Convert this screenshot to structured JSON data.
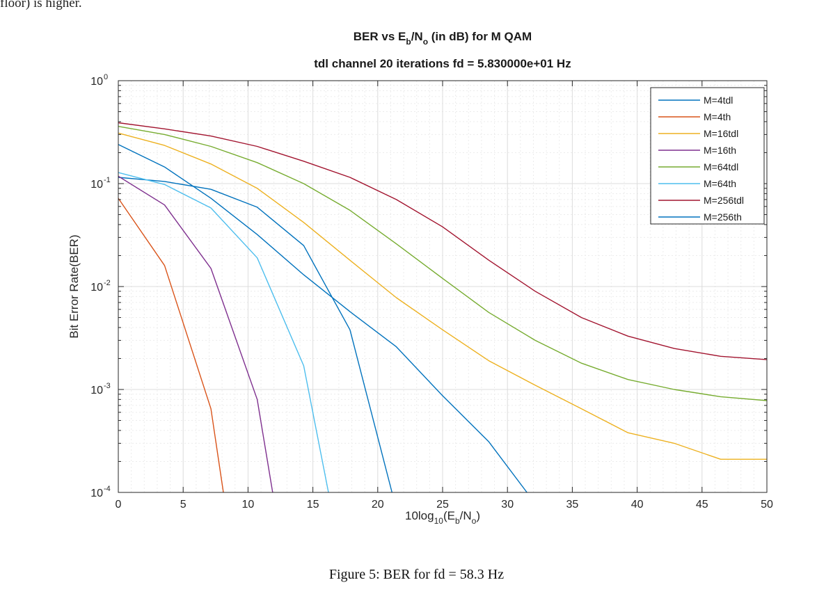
{
  "page": {
    "clipped_text": "floor) is higher.",
    "caption": "Figure 5: BER for fd = 58.3 Hz"
  },
  "chart_data": {
    "type": "line",
    "title": {
      "prefix": "BER vs E",
      "sub1": "b",
      "mid": "/N",
      "sub2": "o",
      "suffix": " (in dB) for M QAM"
    },
    "subtitle": "tdl channel 20 iterations fd = 5.830000e+01 Hz",
    "xlabel": {
      "prefix": "10log",
      "sub1": "10",
      "mid": "(E",
      "sub2": "b",
      "mid2": "/N",
      "sub3": "o",
      "suffix": ")"
    },
    "ylabel": "Bit Error Rate(BER)",
    "xlim": [
      0,
      50
    ],
    "ylim": [
      0.0001,
      1
    ],
    "yscale": "log",
    "xticks": [
      0,
      5,
      10,
      15,
      20,
      25,
      30,
      35,
      40,
      45,
      50
    ],
    "yticks": [
      {
        "value": 0.0001,
        "base": "10",
        "exp": "-4"
      },
      {
        "value": 0.001,
        "base": "10",
        "exp": "-3"
      },
      {
        "value": 0.01,
        "base": "10",
        "exp": "-2"
      },
      {
        "value": 0.1,
        "base": "10",
        "exp": "-1"
      },
      {
        "value": 1,
        "base": "10",
        "exp": "0"
      }
    ],
    "grid": true,
    "minor_grid": true,
    "legend_position": "top-right",
    "series": [
      {
        "name": "M=4tdl",
        "color": "#0072BD",
        "x": [
          0,
          3.57,
          7.14,
          10.71,
          14.29,
          17.86,
          21.1
        ],
        "y": [
          0.115,
          0.105,
          0.088,
          0.059,
          0.025,
          0.0038,
          0.0001
        ]
      },
      {
        "name": "M=4th",
        "color": "#D95319",
        "x": [
          0,
          3.57,
          7.14,
          8.1
        ],
        "y": [
          0.072,
          0.016,
          0.00065,
          0.0001
        ]
      },
      {
        "name": "M=16tdl",
        "color": "#EDB120",
        "x": [
          0,
          3.57,
          7.14,
          10.71,
          14.29,
          17.86,
          21.43,
          25,
          28.57,
          32.14,
          35.71,
          39.29,
          42.86,
          46.43,
          50
        ],
        "y": [
          0.31,
          0.235,
          0.155,
          0.09,
          0.042,
          0.018,
          0.0078,
          0.0038,
          0.0019,
          0.0011,
          0.00065,
          0.00038,
          0.0003,
          0.00021,
          0.00021
        ]
      },
      {
        "name": "M=16th",
        "color": "#7E2F8E",
        "x": [
          0,
          3.57,
          7.14,
          10.71,
          11.9
        ],
        "y": [
          0.118,
          0.062,
          0.015,
          0.0008,
          0.0001
        ]
      },
      {
        "name": "M=64tdl",
        "color": "#77AC30",
        "x": [
          0,
          3.57,
          7.14,
          10.71,
          14.29,
          17.86,
          21.43,
          25,
          28.57,
          32.14,
          35.71,
          39.29,
          42.86,
          46.43,
          50
        ],
        "y": [
          0.36,
          0.3,
          0.23,
          0.16,
          0.1,
          0.055,
          0.026,
          0.012,
          0.0056,
          0.003,
          0.0018,
          0.00125,
          0.001,
          0.00085,
          0.00078
        ]
      },
      {
        "name": "M=64th",
        "color": "#4DBEEE",
        "x": [
          0,
          3.57,
          7.14,
          10.71,
          14.29,
          16.2
        ],
        "y": [
          0.128,
          0.098,
          0.058,
          0.019,
          0.0017,
          0.0001
        ]
      },
      {
        "name": "M=256tdl",
        "color": "#A2142F",
        "x": [
          0,
          3.57,
          7.14,
          10.71,
          14.29,
          17.86,
          21.43,
          25,
          28.57,
          32.14,
          35.71,
          39.29,
          42.86,
          46.43,
          50
        ],
        "y": [
          0.39,
          0.34,
          0.29,
          0.23,
          0.165,
          0.115,
          0.07,
          0.038,
          0.018,
          0.009,
          0.005,
          0.0033,
          0.0025,
          0.0021,
          0.00195
        ]
      },
      {
        "name": "M=256th",
        "color": "#0072BD",
        "x": [
          0,
          3.57,
          7.14,
          10.71,
          14.29,
          17.86,
          21.43,
          25,
          28.57,
          31.5
        ],
        "y": [
          0.24,
          0.145,
          0.072,
          0.032,
          0.013,
          0.0057,
          0.0026,
          0.00087,
          0.00031,
          0.0001
        ]
      }
    ]
  }
}
